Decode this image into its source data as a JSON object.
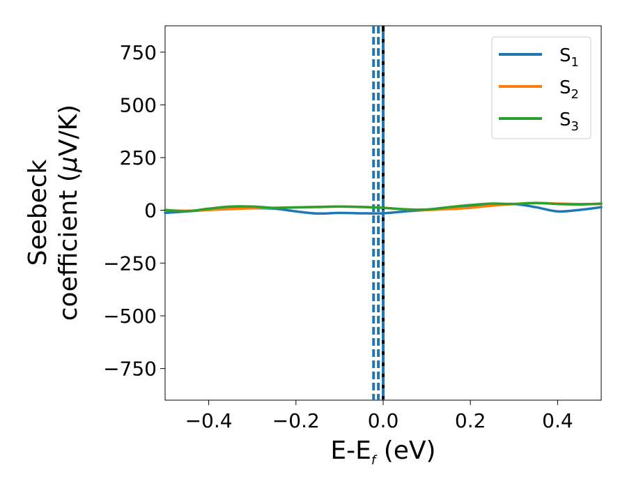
{
  "chart_data": {
    "type": "line",
    "xlabel": {
      "main": "E-E",
      "sub": "f",
      "unit": " (eV)"
    },
    "ylabel": {
      "line1": "Seebeck",
      "line2": "coefficient  (",
      "mu": "μ",
      "unit": "V/K)"
    },
    "xlim": [
      -0.5,
      0.5
    ],
    "ylim": [
      -900,
      875
    ],
    "x_ticks": [
      -0.4,
      -0.2,
      0.0,
      0.2,
      0.4
    ],
    "x_tick_labels": [
      "−0.4",
      "−0.2",
      "0.0",
      "0.2",
      "0.4"
    ],
    "y_ticks": [
      750,
      500,
      250,
      0,
      -250,
      -500,
      -750
    ],
    "y_tick_labels": [
      "750",
      "500",
      "250",
      "0",
      "−250",
      "−500",
      "−750"
    ],
    "vertical_lines": [
      {
        "x": -0.022,
        "color": "#1f77b4",
        "style": "dashed"
      },
      {
        "x": -0.011,
        "color": "#1f77b4",
        "style": "dashed"
      },
      {
        "x": 0.0,
        "color": "#000000",
        "style": "dashed"
      }
    ],
    "fermi_overlay": {
      "x": 0.0,
      "color": "#1f77b4",
      "style": "dashed"
    },
    "legend_position": "top-right",
    "series": [
      {
        "name": "S",
        "sub": "1",
        "color": "#1f77b4",
        "x": [
          -0.5,
          -0.45,
          -0.4,
          -0.35,
          -0.3,
          -0.25,
          -0.2,
          -0.15,
          -0.1,
          -0.05,
          0.0,
          0.05,
          0.1,
          0.15,
          0.2,
          0.25,
          0.3,
          0.35,
          0.4,
          0.45,
          0.5
        ],
        "y": [
          -12,
          -5,
          2,
          8,
          10,
          8,
          -5,
          -15,
          -12,
          -14,
          -14,
          -5,
          2,
          8,
          15,
          25,
          30,
          15,
          -5,
          2,
          15
        ]
      },
      {
        "name": "S",
        "sub": "2",
        "color": "#ff7f0e",
        "x": [
          -0.5,
          -0.45,
          -0.4,
          -0.35,
          -0.3,
          -0.25,
          -0.2,
          -0.15,
          -0.1,
          -0.05,
          0.0,
          0.05,
          0.1,
          0.15,
          0.2,
          0.25,
          0.3,
          0.35,
          0.4,
          0.45,
          0.5
        ],
        "y": [
          0,
          -2,
          2,
          6,
          10,
          12,
          14,
          16,
          18,
          16,
          12,
          5,
          2,
          6,
          12,
          22,
          30,
          35,
          32,
          30,
          30
        ]
      },
      {
        "name": "S",
        "sub": "3",
        "color": "#2ca02c",
        "x": [
          -0.5,
          -0.45,
          -0.4,
          -0.35,
          -0.3,
          -0.25,
          -0.2,
          -0.15,
          -0.1,
          -0.05,
          0.0,
          0.05,
          0.1,
          0.15,
          0.2,
          0.25,
          0.3,
          0.35,
          0.4,
          0.45,
          0.5
        ],
        "y": [
          2,
          -4,
          8,
          18,
          18,
          12,
          14,
          16,
          18,
          16,
          12,
          5,
          4,
          15,
          25,
          32,
          30,
          35,
          30,
          28,
          32
        ]
      }
    ]
  }
}
